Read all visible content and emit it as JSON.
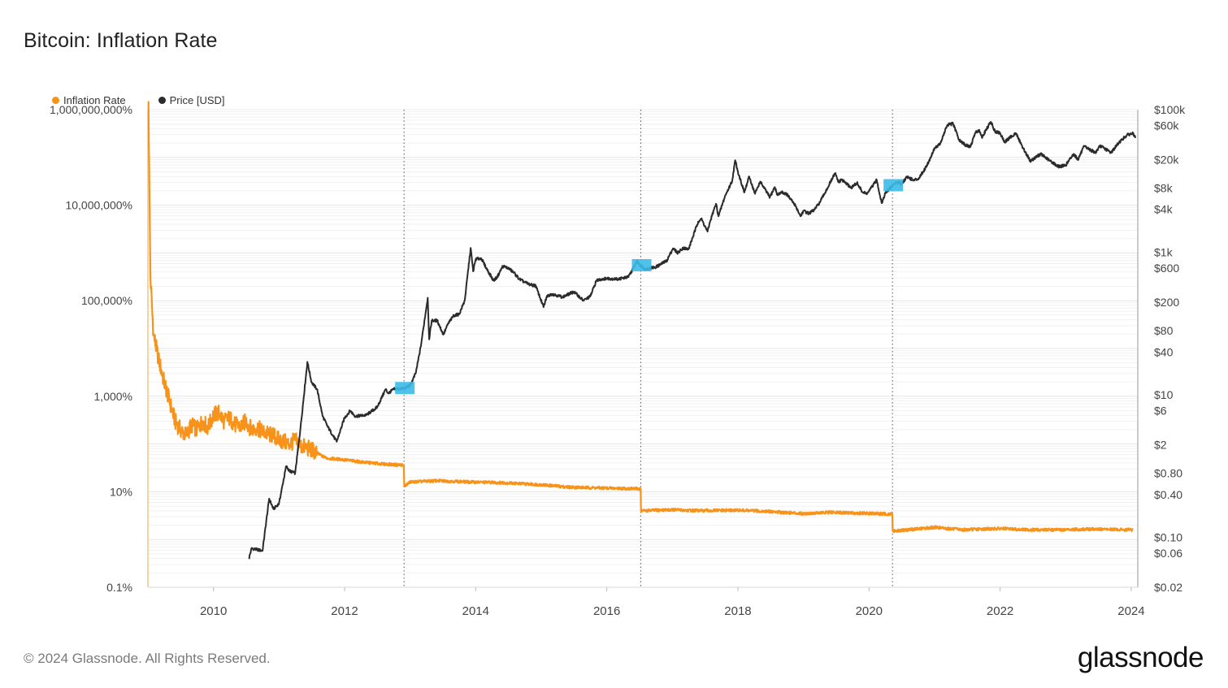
{
  "title": "Bitcoin: Inflation Rate",
  "legend": [
    {
      "label": "Inflation Rate",
      "color": "#f7931a"
    },
    {
      "label": "Price [USD]",
      "color": "#2b2b2b"
    }
  ],
  "footer": "© 2024 Glassnode. All Rights Reserved.",
  "brand": "glassnode",
  "chart_data": {
    "type": "line",
    "title": "Bitcoin: Inflation Rate",
    "x_ticks": [
      "2010",
      "2012",
      "2014",
      "2016",
      "2018",
      "2020",
      "2022",
      "2024"
    ],
    "y_left": {
      "scale": "log",
      "range": [
        0.001,
        10000000
      ],
      "ticks": [
        {
          "value": 10000000,
          "label": "1,000,000,000%"
        },
        {
          "value": 100000,
          "label": "10,000,000%"
        },
        {
          "value": 1000,
          "label": "100,000%"
        },
        {
          "value": 10,
          "label": "1,000%"
        },
        {
          "value": 0.1,
          "label": "10%"
        },
        {
          "value": 0.001,
          "label": "0.1%"
        }
      ]
    },
    "y_right": {
      "scale": "log",
      "range": [
        0.02,
        100000
      ],
      "ticks": [
        {
          "value": 100000,
          "label": "$100k"
        },
        {
          "value": 60000,
          "label": "$60k"
        },
        {
          "value": 20000,
          "label": "$20k"
        },
        {
          "value": 8000,
          "label": "$8k"
        },
        {
          "value": 4000,
          "label": "$4k"
        },
        {
          "value": 1000,
          "label": "$1k"
        },
        {
          "value": 600,
          "label": "$600"
        },
        {
          "value": 200,
          "label": "$200"
        },
        {
          "value": 80,
          "label": "$80"
        },
        {
          "value": 40,
          "label": "$40"
        },
        {
          "value": 10,
          "label": "$10"
        },
        {
          "value": 6,
          "label": "$6"
        },
        {
          "value": 2,
          "label": "$2"
        },
        {
          "value": 0.8,
          "label": "$0.80"
        },
        {
          "value": 0.4,
          "label": "$0.40"
        },
        {
          "value": 0.1,
          "label": "$0.10"
        },
        {
          "value": 0.06,
          "label": "$0.06"
        },
        {
          "value": 0.02,
          "label": "$0.02"
        }
      ]
    },
    "halvings": [
      "2012-11-28",
      "2016-07-09",
      "2020-05-11"
    ],
    "series": [
      {
        "name": "Inflation Rate",
        "axis": "left",
        "color": "#f7931a",
        "points": [
          [
            "2009-01-04",
            15000000
          ],
          [
            "2009-01-15",
            3000
          ],
          [
            "2009-02-01",
            200
          ],
          [
            "2009-03-01",
            60
          ],
          [
            "2009-04-01",
            20
          ],
          [
            "2009-05-01",
            8
          ],
          [
            "2009-06-01",
            3
          ],
          [
            "2009-07-01",
            2
          ],
          [
            "2009-08-01",
            1.5
          ],
          [
            "2009-09-01",
            2.5
          ],
          [
            "2009-10-01",
            2
          ],
          [
            "2009-11-01",
            3
          ],
          [
            "2009-12-01",
            2.2
          ],
          [
            "2010-01-01",
            4
          ],
          [
            "2010-02-01",
            4.5
          ],
          [
            "2010-03-01",
            3
          ],
          [
            "2010-04-01",
            3.5
          ],
          [
            "2010-05-01",
            2.5
          ],
          [
            "2010-06-01",
            2.3
          ],
          [
            "2010-07-01",
            3
          ],
          [
            "2010-08-01",
            2
          ],
          [
            "2010-09-01",
            2.2
          ],
          [
            "2010-10-01",
            1.8
          ],
          [
            "2010-11-01",
            1.6
          ],
          [
            "2010-12-01",
            1.5
          ],
          [
            "2011-01-01",
            1.2
          ],
          [
            "2011-02-01",
            1.1
          ],
          [
            "2011-03-01",
            1.0
          ],
          [
            "2011-04-01",
            1.2
          ],
          [
            "2011-05-01",
            0.9
          ],
          [
            "2011-06-01",
            0.85
          ],
          [
            "2011-07-01",
            0.75
          ],
          [
            "2011-08-01",
            0.65
          ],
          [
            "2011-09-01",
            0.55
          ],
          [
            "2011-10-01",
            0.5
          ],
          [
            "2011-12-01",
            0.48
          ],
          [
            "2012-02-01",
            0.45
          ],
          [
            "2012-04-01",
            0.42
          ],
          [
            "2012-06-01",
            0.4
          ],
          [
            "2012-08-01",
            0.38
          ],
          [
            "2012-10-01",
            0.37
          ],
          [
            "2012-11-27",
            0.36
          ],
          [
            "2012-11-29",
            0.13
          ],
          [
            "2013-01-01",
            0.16
          ],
          [
            "2013-06-01",
            0.17
          ],
          [
            "2013-12-01",
            0.16
          ],
          [
            "2014-06-01",
            0.155
          ],
          [
            "2015-01-01",
            0.14
          ],
          [
            "2015-06-01",
            0.125
          ],
          [
            "2015-12-01",
            0.12
          ],
          [
            "2016-07-08",
            0.115
          ],
          [
            "2016-07-10",
            0.04
          ],
          [
            "2017-01-01",
            0.042
          ],
          [
            "2017-06-01",
            0.04
          ],
          [
            "2018-01-01",
            0.041
          ],
          [
            "2018-06-01",
            0.039
          ],
          [
            "2019-01-01",
            0.035
          ],
          [
            "2019-06-01",
            0.037
          ],
          [
            "2020-05-10",
            0.034
          ],
          [
            "2020-05-12",
            0.015
          ],
          [
            "2021-01-01",
            0.018
          ],
          [
            "2021-06-01",
            0.016
          ],
          [
            "2022-01-01",
            0.017
          ],
          [
            "2022-06-01",
            0.016
          ],
          [
            "2023-01-01",
            0.016
          ],
          [
            "2023-06-01",
            0.0165
          ],
          [
            "2024-01-10",
            0.016
          ]
        ]
      },
      {
        "name": "Price [USD]",
        "axis": "right",
        "color": "#2b2b2b",
        "points": [
          [
            "2010-07-17",
            0.05
          ],
          [
            "2010-08-01",
            0.07
          ],
          [
            "2010-10-01",
            0.065
          ],
          [
            "2010-11-07",
            0.35
          ],
          [
            "2010-12-01",
            0.25
          ],
          [
            "2011-01-01",
            0.3
          ],
          [
            "2011-02-10",
            1.0
          ],
          [
            "2011-03-01",
            0.85
          ],
          [
            "2011-04-01",
            0.8
          ],
          [
            "2011-05-01",
            3.5
          ],
          [
            "2011-06-08",
            29
          ],
          [
            "2011-07-01",
            15
          ],
          [
            "2011-08-01",
            12
          ],
          [
            "2011-09-01",
            5
          ],
          [
            "2011-10-01",
            3.5
          ],
          [
            "2011-11-18",
            2.2
          ],
          [
            "2011-12-31",
            4.7
          ],
          [
            "2012-02-01",
            6
          ],
          [
            "2012-03-01",
            5
          ],
          [
            "2012-05-01",
            5.2
          ],
          [
            "2012-07-01",
            6.7
          ],
          [
            "2012-08-17",
            12
          ],
          [
            "2012-09-01",
            10.5
          ],
          [
            "2012-10-01",
            12
          ],
          [
            "2012-11-28",
            12.3
          ],
          [
            "2013-01-01",
            13.5
          ],
          [
            "2013-02-01",
            20
          ],
          [
            "2013-03-01",
            47
          ],
          [
            "2013-04-09",
            230
          ],
          [
            "2013-04-17",
            60
          ],
          [
            "2013-05-01",
            110
          ],
          [
            "2013-06-01",
            110
          ],
          [
            "2013-07-05",
            70
          ],
          [
            "2013-08-01",
            100
          ],
          [
            "2013-09-01",
            130
          ],
          [
            "2013-10-01",
            135
          ],
          [
            "2013-11-01",
            210
          ],
          [
            "2013-12-04",
            1150
          ],
          [
            "2013-12-18",
            540
          ],
          [
            "2014-01-01",
            800
          ],
          [
            "2014-02-01",
            820
          ],
          [
            "2014-03-01",
            600
          ],
          [
            "2014-04-10",
            400
          ],
          [
            "2014-05-01",
            450
          ],
          [
            "2014-06-01",
            640
          ],
          [
            "2014-07-01",
            600
          ],
          [
            "2014-08-01",
            520
          ],
          [
            "2014-09-01",
            420
          ],
          [
            "2014-10-01",
            380
          ],
          [
            "2014-11-01",
            350
          ],
          [
            "2014-12-01",
            340
          ],
          [
            "2015-01-14",
            170
          ],
          [
            "2015-02-01",
            240
          ],
          [
            "2015-03-01",
            260
          ],
          [
            "2015-05-01",
            235
          ],
          [
            "2015-07-01",
            280
          ],
          [
            "2015-08-24",
            210
          ],
          [
            "2015-10-01",
            240
          ],
          [
            "2015-11-04",
            400
          ],
          [
            "2015-12-01",
            420
          ],
          [
            "2016-01-01",
            430
          ],
          [
            "2016-03-01",
            420
          ],
          [
            "2016-05-01",
            450
          ],
          [
            "2016-06-17",
            750
          ],
          [
            "2016-07-09",
            650
          ],
          [
            "2016-08-01",
            580
          ],
          [
            "2016-10-01",
            620
          ],
          [
            "2016-12-01",
            760
          ],
          [
            "2017-01-04",
            1130
          ],
          [
            "2017-02-01",
            980
          ],
          [
            "2017-03-01",
            1150
          ],
          [
            "2017-04-01",
            1100
          ],
          [
            "2017-05-25",
            2700
          ],
          [
            "2017-06-11",
            2950
          ],
          [
            "2017-07-16",
            1950
          ],
          [
            "2017-08-01",
            2800
          ],
          [
            "2017-09-01",
            4800
          ],
          [
            "2017-09-15",
            3200
          ],
          [
            "2017-10-20",
            6000
          ],
          [
            "2017-11-30",
            10000
          ],
          [
            "2017-12-17",
            19500
          ],
          [
            "2018-01-01",
            13500
          ],
          [
            "2018-02-06",
            6900
          ],
          [
            "2018-03-05",
            11500
          ],
          [
            "2018-04-06",
            6600
          ],
          [
            "2018-05-05",
            9800
          ],
          [
            "2018-06-28",
            5900
          ],
          [
            "2018-07-25",
            8200
          ],
          [
            "2018-08-10",
            6300
          ],
          [
            "2018-09-01",
            7000
          ],
          [
            "2018-10-01",
            6500
          ],
          [
            "2018-11-20",
            4400
          ],
          [
            "2018-12-15",
            3200
          ],
          [
            "2019-01-01",
            3800
          ],
          [
            "2019-02-01",
            3500
          ],
          [
            "2019-03-01",
            3900
          ],
          [
            "2019-04-02",
            5000
          ],
          [
            "2019-05-15",
            8000
          ],
          [
            "2019-06-26",
            12800
          ],
          [
            "2019-07-17",
            9500
          ],
          [
            "2019-08-01",
            10500
          ],
          [
            "2019-09-24",
            8000
          ],
          [
            "2019-10-26",
            9400
          ],
          [
            "2019-11-25",
            7000
          ],
          [
            "2019-12-18",
            6600
          ],
          [
            "2020-01-01",
            7200
          ],
          [
            "2020-02-13",
            10300
          ],
          [
            "2020-03-12",
            4900
          ],
          [
            "2020-04-01",
            6700
          ],
          [
            "2020-05-11",
            8600
          ],
          [
            "2020-06-01",
            9600
          ],
          [
            "2020-07-01",
            9200
          ],
          [
            "2020-08-01",
            11500
          ],
          [
            "2020-09-05",
            10200
          ],
          [
            "2020-10-01",
            10700
          ],
          [
            "2020-11-01",
            13800
          ],
          [
            "2020-12-01",
            19000
          ],
          [
            "2021-01-01",
            29000
          ],
          [
            "2021-02-01",
            33000
          ],
          [
            "2021-03-13",
            61000
          ],
          [
            "2021-04-14",
            63500
          ],
          [
            "2021-05-19",
            37000
          ],
          [
            "2021-06-22",
            32000
          ],
          [
            "2021-07-20",
            30000
          ],
          [
            "2021-08-15",
            47000
          ],
          [
            "2021-09-07",
            52000
          ],
          [
            "2021-09-21",
            41000
          ],
          [
            "2021-11-10",
            67500
          ],
          [
            "2021-12-04",
            49000
          ],
          [
            "2022-01-01",
            47000
          ],
          [
            "2022-01-24",
            35000
          ],
          [
            "2022-03-29",
            47000
          ],
          [
            "2022-05-12",
            28000
          ],
          [
            "2022-06-18",
            19000
          ],
          [
            "2022-08-15",
            24000
          ],
          [
            "2022-10-01",
            19500
          ],
          [
            "2022-11-21",
            16000
          ],
          [
            "2022-12-31",
            16500
          ],
          [
            "2023-02-15",
            24000
          ],
          [
            "2023-03-10",
            20000
          ],
          [
            "2023-04-14",
            30500
          ],
          [
            "2023-06-15",
            25000
          ],
          [
            "2023-07-13",
            31000
          ],
          [
            "2023-09-11",
            25000
          ],
          [
            "2023-10-24",
            34500
          ],
          [
            "2023-12-08",
            44000
          ],
          [
            "2024-01-11",
            46500
          ],
          [
            "2024-01-24",
            40000
          ]
        ]
      }
    ]
  }
}
